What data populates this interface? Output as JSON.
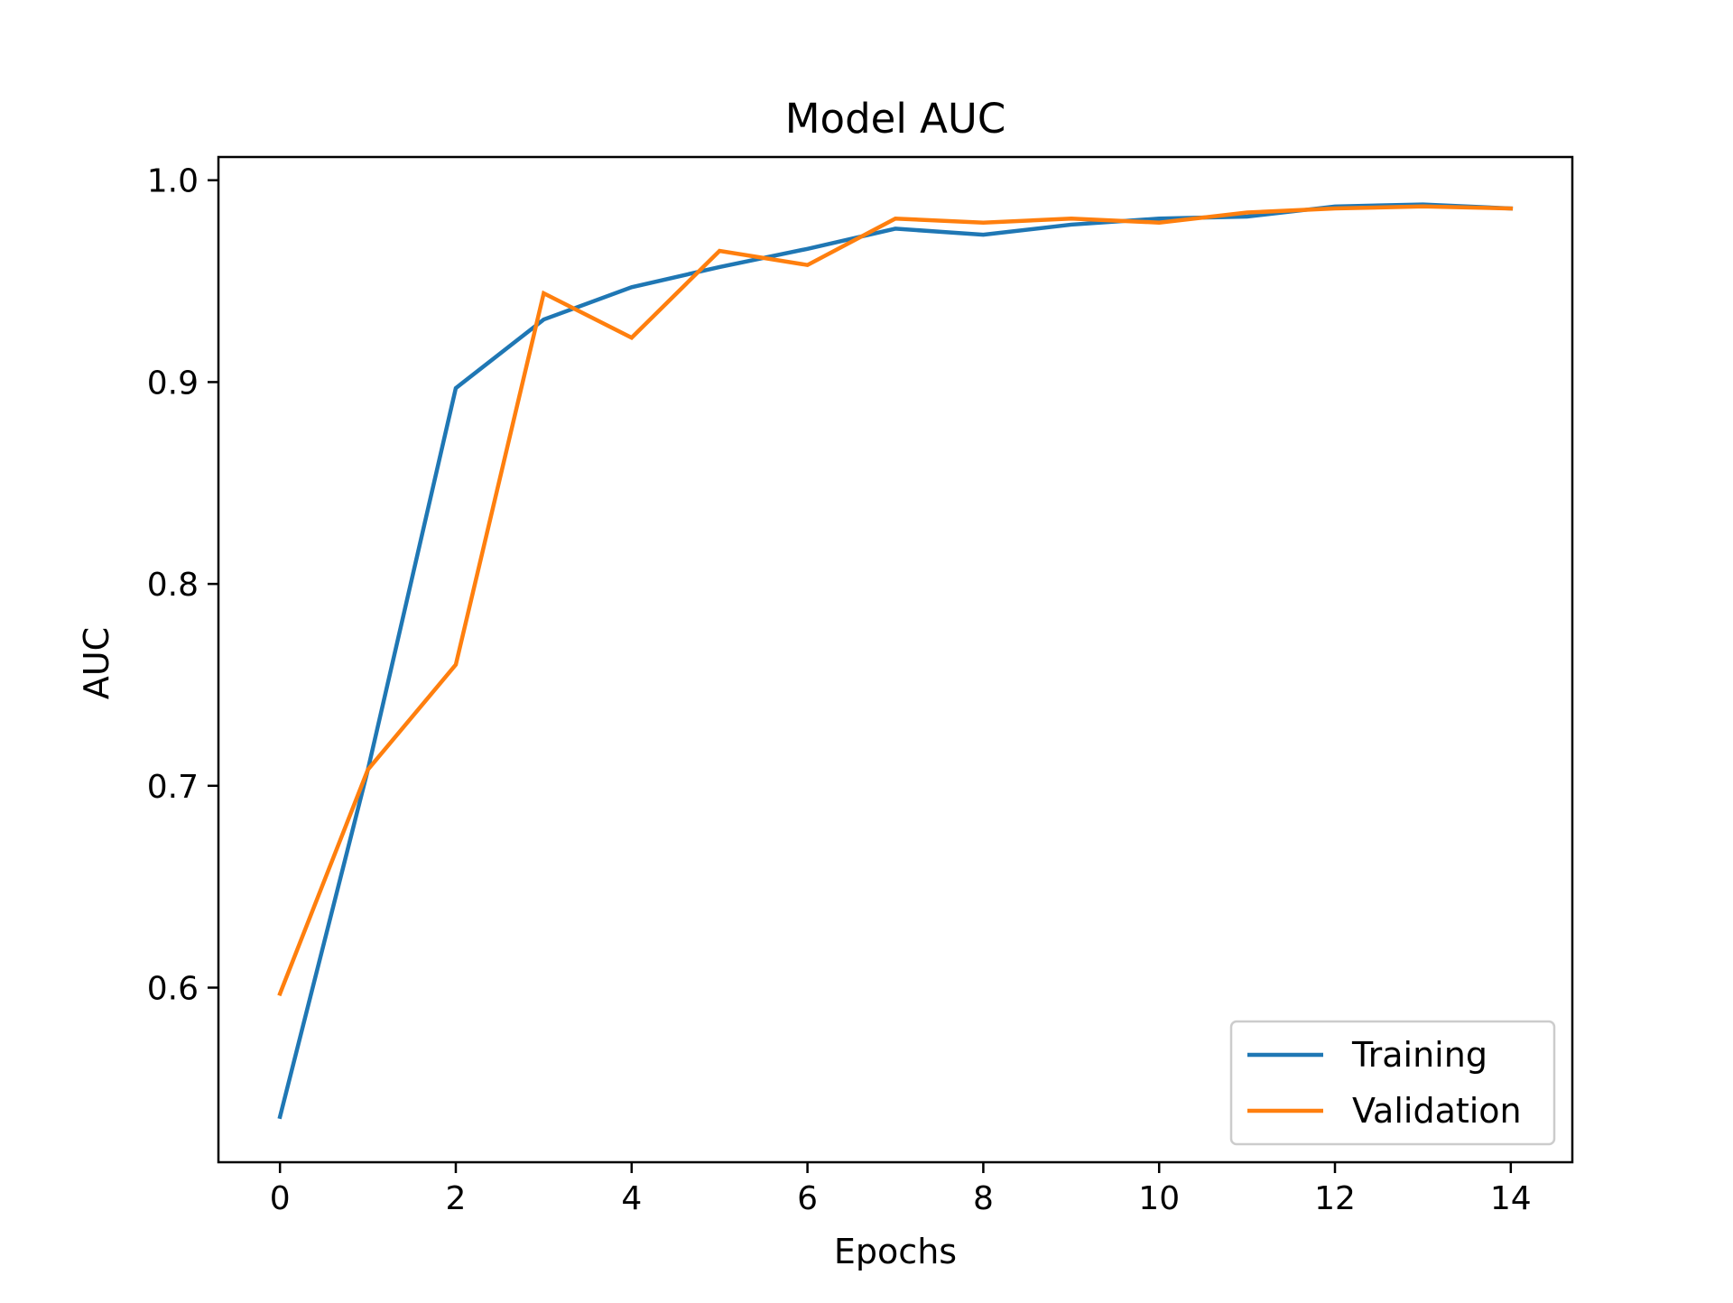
{
  "chart_data": {
    "type": "line",
    "title": "Model AUC",
    "xlabel": "Epochs",
    "ylabel": "AUC",
    "xlim": [
      -0.7,
      14.7
    ],
    "ylim": [
      0.5135,
      1.0115
    ],
    "xticks": [
      0,
      2,
      4,
      6,
      8,
      10,
      12,
      14
    ],
    "yticks": [
      0.6,
      0.7,
      0.8,
      0.9,
      1.0
    ],
    "xtick_labels": [
      "0",
      "2",
      "4",
      "6",
      "8",
      "10",
      "12",
      "14"
    ],
    "ytick_labels": [
      "0.6",
      "0.7",
      "0.8",
      "0.9",
      "1.0"
    ],
    "grid": false,
    "legend_position": "lower right",
    "x": [
      0,
      1,
      2,
      3,
      4,
      5,
      6,
      7,
      8,
      9,
      10,
      11,
      12,
      13,
      14
    ],
    "series": [
      {
        "name": "Training",
        "color": "#1f77b4",
        "values": [
          0.536,
          0.708,
          0.897,
          0.931,
          0.947,
          0.957,
          0.966,
          0.976,
          0.973,
          0.978,
          0.981,
          0.982,
          0.987,
          0.988,
          0.986
        ]
      },
      {
        "name": "Validation",
        "color": "#ff7f0e",
        "values": [
          0.597,
          0.708,
          0.76,
          0.944,
          0.922,
          0.965,
          0.958,
          0.981,
          0.979,
          0.981,
          0.979,
          0.984,
          0.986,
          0.987,
          0.986
        ]
      }
    ]
  }
}
